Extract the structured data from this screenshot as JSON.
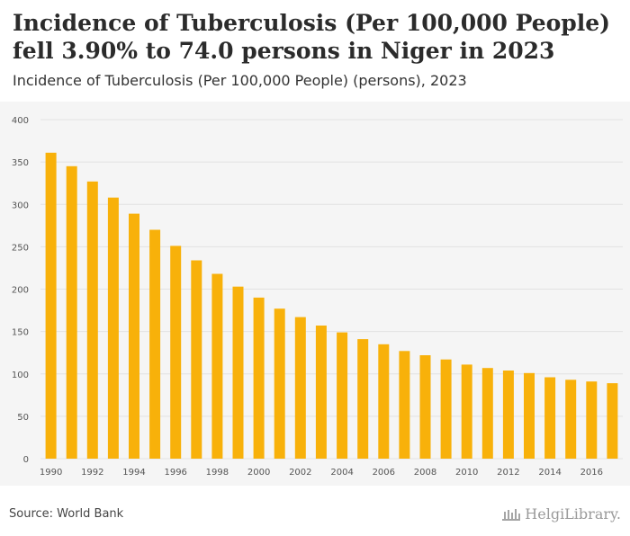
{
  "header": {
    "title": "Incidence of Tuberculosis (Per 100,000 People) fell 3.90% to 74.0 persons in Niger in 2023",
    "subtitle": "Incidence of Tuberculosis (Per 100,000 People) (persons), 2023"
  },
  "footer": {
    "source": "Source: World Bank",
    "logo_text": "HelgiLibrary."
  },
  "colors": {
    "bar": "#F8B10A",
    "background": "#F5F5F5",
    "grid": "#E2E2E2"
  },
  "chart_data": {
    "type": "bar",
    "categories": [
      "1990",
      "1991",
      "1992",
      "1993",
      "1994",
      "1995",
      "1996",
      "1997",
      "1998",
      "1999",
      "2000",
      "2001",
      "2002",
      "2003",
      "2004",
      "2005",
      "2006",
      "2007",
      "2008",
      "2009",
      "2010",
      "2011",
      "2012",
      "2013",
      "2014",
      "2015",
      "2016",
      "2017"
    ],
    "x_tick_labels": [
      "1990",
      "1992",
      "1994",
      "1996",
      "1998",
      "2000",
      "2002",
      "2004",
      "2006",
      "2008",
      "2010",
      "2012",
      "2014",
      "2016"
    ],
    "values": [
      361,
      345,
      327,
      308,
      289,
      270,
      251,
      234,
      218,
      203,
      190,
      177,
      167,
      157,
      149,
      141,
      135,
      127,
      122,
      117,
      111,
      107,
      104,
      101,
      96,
      93,
      91,
      89
    ],
    "ylim": [
      0,
      400
    ],
    "yticks": [
      0,
      50,
      100,
      150,
      200,
      250,
      300,
      350,
      400
    ],
    "grid": true,
    "legend": "none"
  }
}
